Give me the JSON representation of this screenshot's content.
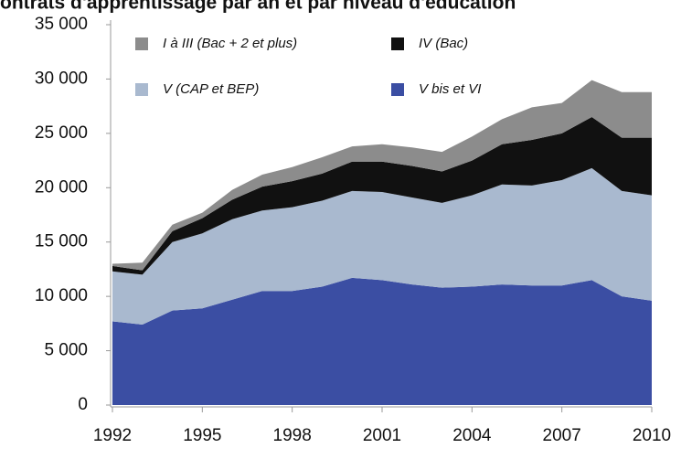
{
  "chart_data": {
    "type": "stacked_area",
    "title": "ontrats d'apprentissage par an et par niveau d'éducation",
    "x": [
      1992,
      1993,
      1994,
      1995,
      1996,
      1997,
      1998,
      1999,
      2000,
      2001,
      2002,
      2003,
      2004,
      2005,
      2006,
      2007,
      2008,
      2009,
      2010
    ],
    "xlim": [
      1992,
      2010
    ],
    "xticks": [
      1992,
      1995,
      1998,
      2001,
      2004,
      2007,
      2010
    ],
    "ylim": [
      0,
      35000
    ],
    "yticks": [
      {
        "value": 0,
        "label": "0"
      },
      {
        "value": 5000,
        "label": "5 000"
      },
      {
        "value": 10000,
        "label": "10 000"
      },
      {
        "value": 15000,
        "label": "15 000"
      },
      {
        "value": 20000,
        "label": "20 000"
      },
      {
        "value": 25000,
        "label": "25 000"
      },
      {
        "value": 30000,
        "label": "30 000"
      },
      {
        "value": 35000,
        "label": "35 000"
      }
    ],
    "series": [
      {
        "name": "V bis et VI",
        "color": "#3b4ea3",
        "values": [
          7700,
          7400,
          8700,
          8900,
          9700,
          10500,
          10500,
          10900,
          11700,
          11500,
          11100,
          10800,
          10900,
          11100,
          11000,
          11000,
          11500,
          10000,
          9600
        ]
      },
      {
        "name": "V (CAP et BEP)",
        "color": "#a9b9cf",
        "values": [
          4600,
          4600,
          6300,
          6900,
          7400,
          7400,
          7700,
          7900,
          8000,
          8100,
          8000,
          7800,
          8400,
          9200,
          9200,
          9700,
          10300,
          9700,
          9700
        ]
      },
      {
        "name": "IV (Bac)",
        "color": "#111111",
        "values": [
          500,
          400,
          1000,
          1400,
          1800,
          2200,
          2400,
          2500,
          2700,
          2800,
          2900,
          2900,
          3200,
          3700,
          4200,
          4300,
          4700,
          4900,
          5300
        ]
      },
      {
        "name": "I à III (Bac + 2 et plus)",
        "color": "#8c8c8c",
        "values": [
          200,
          700,
          600,
          500,
          900,
          1100,
          1300,
          1500,
          1400,
          1600,
          1700,
          1800,
          2200,
          2300,
          3000,
          2800,
          3400,
          4200,
          4200
        ]
      }
    ]
  }
}
